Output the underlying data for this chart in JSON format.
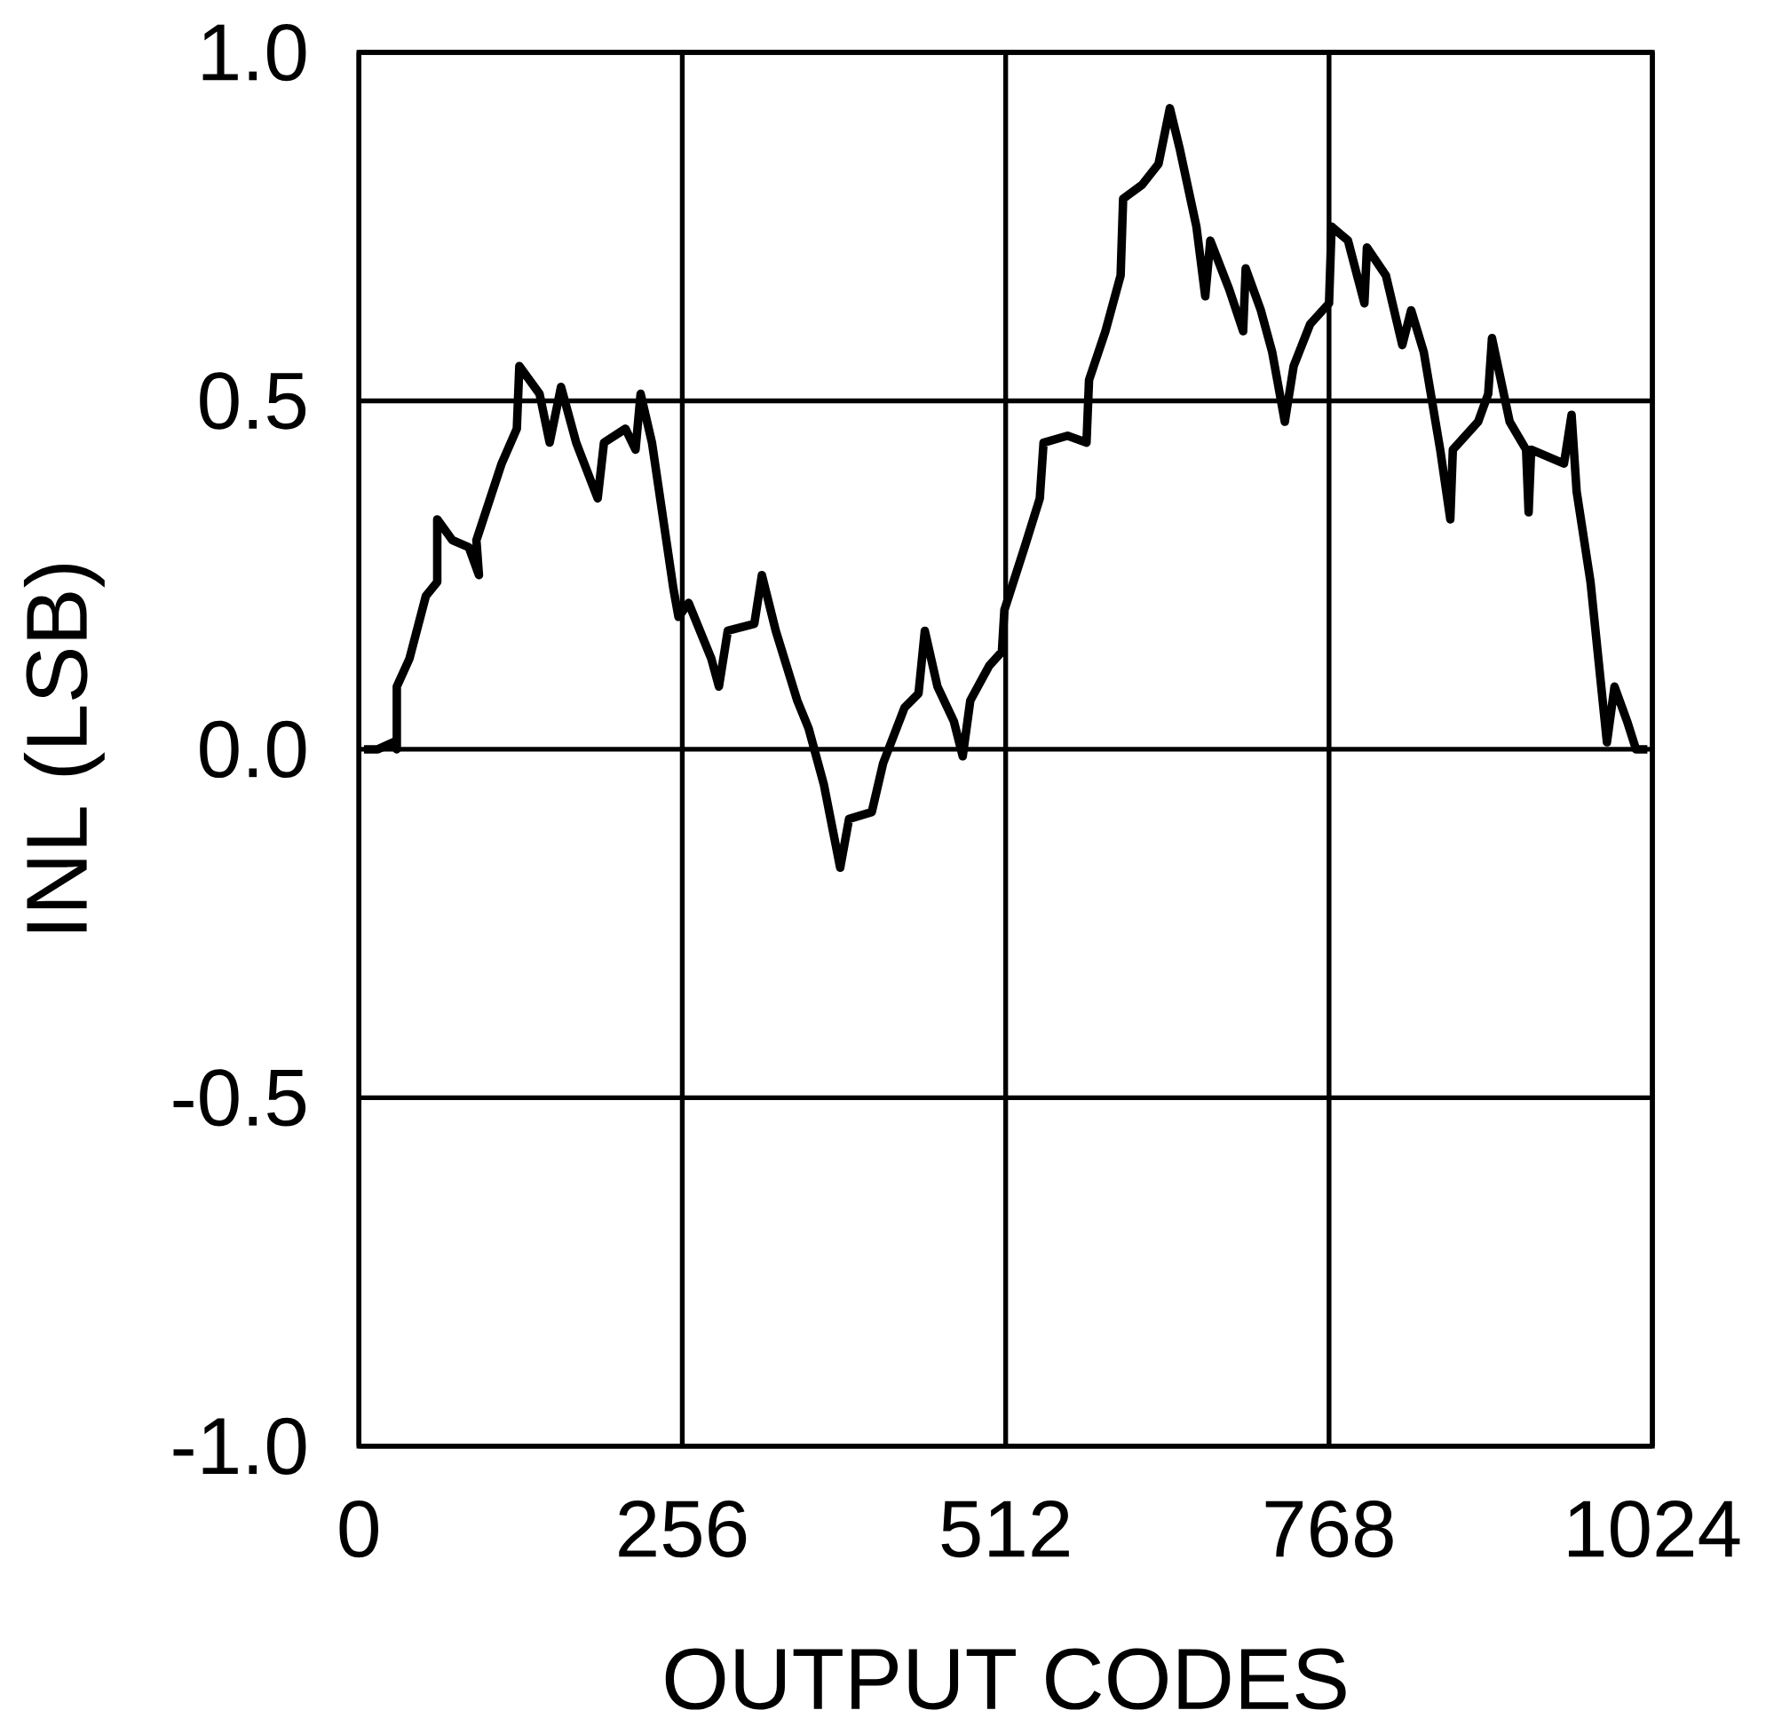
{
  "chart_data": {
    "type": "line",
    "xlabel": "OUTPUT CODES",
    "ylabel": "INL (LSB)",
    "xlim": [
      0,
      1024
    ],
    "xticks": [
      0,
      256,
      512,
      768,
      1024
    ],
    "ylim": [
      -1.0,
      1.0
    ],
    "yticks": [
      {
        "value": -1.0,
        "label": "-1.0"
      },
      {
        "value": -0.5,
        "label": "-0.5"
      },
      {
        "value": 0.0,
        "label": "0.0"
      },
      {
        "value": 0.5,
        "label": "0.5"
      },
      {
        "value": 1.0,
        "label": "1.0"
      }
    ],
    "grid": true,
    "marker": "none",
    "line_style": "solid",
    "series": [
      {
        "color": "#000000",
        "x": [
          4,
          15,
          27,
          30,
          30,
          40,
          53,
          62,
          62,
          74,
          87,
          95,
          93,
          113,
          125,
          127,
          143,
          151,
          160,
          172,
          189,
          194,
          211,
          219,
          223,
          232,
          249,
          253,
          261,
          279,
          285,
          292,
          313,
          319,
          330,
          347,
          356,
          368,
          381,
          388,
          406,
          415,
          432,
          443,
          448,
          458,
          471,
          478,
          484,
          499,
          509,
          511,
          527,
          539,
          542,
          561,
          576,
          578,
          591,
          603,
          605,
          620,
          633,
          642,
          650,
          663,
          670,
          674,
          689,
          700,
          702,
          714,
          723,
          733,
          740,
          753,
          768,
          770,
          783,
          796,
          798,
          813,
          826,
          833,
          843,
          856,
          864,
          866,
          886,
          894,
          897,
          911,
          924,
          926,
          928,
          954,
          960,
          964,
          975,
          988,
          994,
          1004,
          1011,
          1020
        ],
        "values": [
          0,
          0,
          0.01,
          0,
          0.09,
          0.13,
          0.22,
          0.24,
          0.33,
          0.3,
          0.29,
          0.25,
          0.3,
          0.41,
          0.46,
          0.55,
          0.51,
          0.44,
          0.52,
          0.44,
          0.36,
          0.44,
          0.46,
          0.43,
          0.51,
          0.44,
          0.23,
          0.19,
          0.21,
          0.13,
          0.09,
          0.17,
          0.18,
          0.25,
          0.17,
          0.07,
          0.03,
          -0.05,
          -0.17,
          -0.1,
          -0.09,
          -0.02,
          0.06,
          0.08,
          0.17,
          0.09,
          0.04,
          -0.01,
          0.07,
          0.12,
          0.14,
          0.2,
          0.29,
          0.36,
          0.44,
          0.45,
          0.44,
          0.53,
          0.6,
          0.68,
          0.79,
          0.81,
          0.84,
          0.92,
          0.86,
          0.75,
          0.65,
          0.73,
          0.66,
          0.6,
          0.69,
          0.63,
          0.57,
          0.47,
          0.55,
          0.61,
          0.64,
          0.75,
          0.73,
          0.64,
          0.72,
          0.68,
          0.58,
          0.63,
          0.57,
          0.43,
          0.33,
          0.43,
          0.47,
          0.51,
          0.59,
          0.47,
          0.43,
          0.34,
          0.43,
          0.41,
          0.48,
          0.37,
          0.24,
          0.01,
          0.09,
          0.04,
          0.0,
          0.0
        ]
      }
    ]
  }
}
